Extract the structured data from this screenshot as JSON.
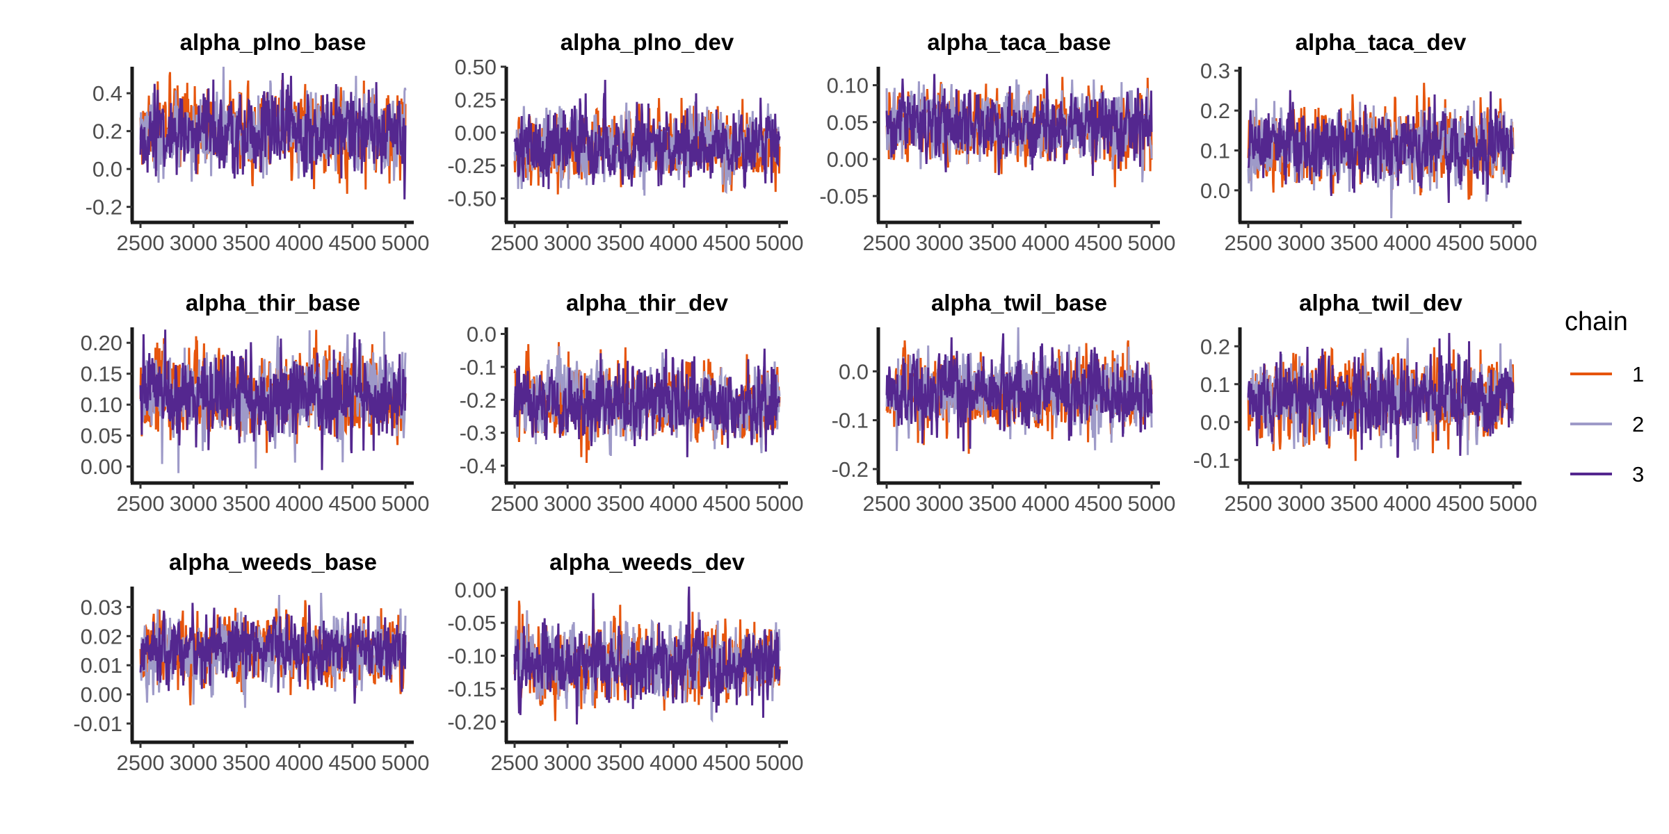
{
  "chart_data": {
    "type": "line",
    "description_free": true,
    "legend": {
      "title": "chain",
      "placement": "right",
      "entries": [
        {
          "label": "1",
          "color": "#e6550d"
        },
        {
          "label": "2",
          "color": "#9e9ac8"
        },
        {
          "label": "3",
          "color": "#54278f"
        }
      ]
    },
    "x_ticks": [
      "2500",
      "3000",
      "3500",
      "4000",
      "4500",
      "5000"
    ],
    "x_range": [
      2500,
      5000
    ],
    "grid": false,
    "panels": [
      {
        "title": "alpha_plno_base",
        "ylim": [
          -0.26,
          0.54
        ],
        "yticks": [
          -0.2,
          0.0,
          0.2,
          0.4
        ],
        "ytick_labels": [
          "-0.2",
          "0.0",
          "0.2",
          "0.4"
        ],
        "mean": 0.2,
        "spread": 0.11
      },
      {
        "title": "alpha_plno_dev",
        "ylim": [
          -0.65,
          0.5
        ],
        "yticks": [
          -0.5,
          -0.25,
          0.0,
          0.25,
          0.5
        ],
        "ytick_labels": [
          "-0.50",
          "-0.25",
          "0.00",
          "0.25",
          "0.50"
        ],
        "mean": -0.1,
        "spread": 0.14
      },
      {
        "title": "alpha_taca_base",
        "ylim": [
          -0.08,
          0.125
        ],
        "yticks": [
          -0.05,
          0.0,
          0.05,
          0.1
        ],
        "ytick_labels": [
          "-0.05",
          "0.00",
          "0.05",
          "0.10"
        ],
        "mean": 0.045,
        "spread": 0.025
      },
      {
        "title": "alpha_taca_dev",
        "ylim": [
          -0.07,
          0.31
        ],
        "yticks": [
          0.0,
          0.1,
          0.2,
          0.3
        ],
        "ytick_labels": [
          "0.0",
          "0.1",
          "0.2",
          "0.3"
        ],
        "mean": 0.11,
        "spread": 0.05
      },
      {
        "title": "alpha_thir_base",
        "ylim": [
          -0.02,
          0.225
        ],
        "yticks": [
          0.0,
          0.05,
          0.1,
          0.15,
          0.2
        ],
        "ytick_labels": [
          "0.00",
          "0.05",
          "0.10",
          "0.15",
          "0.20"
        ],
        "mean": 0.115,
        "spread": 0.035
      },
      {
        "title": "alpha_thir_dev",
        "ylim": [
          -0.44,
          0.02
        ],
        "yticks": [
          -0.4,
          -0.3,
          -0.2,
          -0.1,
          0.0
        ],
        "ytick_labels": [
          "-0.4",
          "-0.3",
          "-0.2",
          "-0.1",
          "0.0"
        ],
        "mean": -0.21,
        "spread": 0.06
      },
      {
        "title": "alpha_twil_base",
        "ylim": [
          -0.22,
          0.09
        ],
        "yticks": [
          -0.2,
          -0.1,
          0.0
        ],
        "ytick_labels": [
          "-0.2",
          "-0.1",
          "0.0"
        ],
        "mean": -0.04,
        "spread": 0.04
      },
      {
        "title": "alpha_twil_dev",
        "ylim": [
          -0.15,
          0.25
        ],
        "yticks": [
          -0.1,
          0.0,
          0.1,
          0.2
        ],
        "ytick_labels": [
          "-0.1",
          "0.0",
          "0.1",
          "0.2"
        ],
        "mean": 0.06,
        "spread": 0.055
      },
      {
        "title": "alpha_weeds_base",
        "ylim": [
          -0.015,
          0.037
        ],
        "yticks": [
          -0.01,
          0.0,
          0.01,
          0.02,
          0.03
        ],
        "ytick_labels": [
          "-0.01",
          "0.00",
          "0.01",
          "0.02",
          "0.03"
        ],
        "mean": 0.015,
        "spread": 0.006
      },
      {
        "title": "alpha_weeds_dev",
        "ylim": [
          -0.225,
          0.005
        ],
        "yticks": [
          -0.2,
          -0.15,
          -0.1,
          -0.05,
          0.0
        ],
        "ytick_labels": [
          "-0.20",
          "-0.15",
          "-0.10",
          "-0.05",
          "0.00"
        ],
        "mean": -0.11,
        "spread": 0.03
      }
    ]
  }
}
